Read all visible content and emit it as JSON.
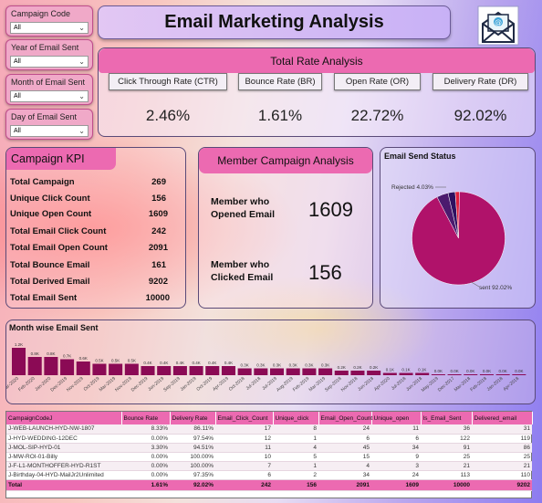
{
  "title": "Email Marketing Analysis",
  "slicers": [
    {
      "label": "Campaign Code",
      "value": "All"
    },
    {
      "label": "Year of Email Sent",
      "value": "All"
    },
    {
      "label": "Month of Email Sent",
      "value": "All"
    },
    {
      "label": "Day of Email Sent",
      "value": "All"
    }
  ],
  "rates": {
    "heading": "Total Rate Analysis",
    "items": [
      {
        "label": "Click Through Rate (CTR)",
        "value": "2.46%"
      },
      {
        "label": "Bounce Rate (BR)",
        "value": "1.61%"
      },
      {
        "label": "Open Rate (OR)",
        "value": "22.72%"
      },
      {
        "label": "Delivery Rate (DR)",
        "value": "92.02%"
      }
    ]
  },
  "kpi": {
    "heading": "Campaign KPI",
    "rows": [
      {
        "label": "Total Campaign",
        "value": "269"
      },
      {
        "label": "Unique Click Count",
        "value": "156"
      },
      {
        "label": "Unique Open Count",
        "value": "1609"
      },
      {
        "label": "Total Email Click Count",
        "value": "242"
      },
      {
        "label": "Total Email Open Count",
        "value": "2091"
      },
      {
        "label": "Total Bounce Email",
        "value": "161"
      },
      {
        "label": "Total Derived Email",
        "value": "9202"
      },
      {
        "label": "Total Email Sent",
        "value": "10000"
      }
    ]
  },
  "member": {
    "heading": "Member Campaign Analysis",
    "opened_label_1": "Member who",
    "opened_label_2": "Opened Email",
    "opened_value": "1609",
    "clicked_label_1": "Member who",
    "clicked_label_2": "Clicked Email",
    "clicked_value": "156"
  },
  "status": {
    "title": "Email Send Status",
    "rejected_label": "Rejected 4.03%",
    "sent_label": "sent 92.02%",
    "slices": [
      {
        "name": "sent",
        "pct": 92.02,
        "color": "#b0126a"
      },
      {
        "name": "Rejected",
        "pct": 4.03,
        "color": "#4b1a6e"
      },
      {
        "name": "other",
        "pct": 2.5,
        "color": "#2e1060"
      },
      {
        "name": "other2",
        "pct": 1.45,
        "color": "#e0203c"
      }
    ]
  },
  "chart_data": {
    "type": "bar",
    "title": "Month wise Email Sent",
    "categories": [
      "Mar-2020",
      "Feb-2020",
      "Jan-2020",
      "Dec-2019",
      "Nov-2019",
      "Oct-2019",
      "Mar-2019",
      "Nov-2019",
      "Dec-2019",
      "Jun-2019",
      "Sep-2019",
      "Jan-2019",
      "Oct-2019",
      "Apr-2019",
      "Oct-2018",
      "Jul-2018",
      "Jul-2019",
      "Aug-2019",
      "Feb-2019",
      "Mar-2019",
      "Sep-2018",
      "Nov-2018",
      "Jun-2018",
      "Apr-2020",
      "Jul-2018",
      "Jun-2018",
      "May-2019",
      "Dec-2017",
      "Mar-2018",
      "Feb-2018",
      "Jan-2018",
      "Apr-2018"
    ],
    "values": [
      1.2,
      0.8,
      0.8,
      0.7,
      0.6,
      0.5,
      0.5,
      0.5,
      0.4,
      0.4,
      0.4,
      0.4,
      0.4,
      0.4,
      0.3,
      0.3,
      0.3,
      0.3,
      0.3,
      0.3,
      0.2,
      0.2,
      0.2,
      0.1,
      0.1,
      0.1,
      0.0,
      0.0,
      0.0,
      0.0,
      0.0,
      0.0
    ],
    "labels": [
      "1.2K",
      "0.8K",
      "0.8K",
      "0.7K",
      "0.6K",
      "0.5K",
      "0.5K",
      "0.5K",
      "0.4K",
      "0.4K",
      "0.4K",
      "0.4K",
      "0.4K",
      "0.4K",
      "0.3K",
      "0.3K",
      "0.3K",
      "0.3K",
      "0.3K",
      "0.3K",
      "0.2K",
      "0.2K",
      "0.2K",
      "0.1K",
      "0.1K",
      "0.1K",
      "0.0K",
      "0.0K",
      "0.0K",
      "0.0K",
      "0.0K",
      "0.0K"
    ],
    "bar_color": "#8b0a55"
  },
  "table": {
    "columns": [
      "CampaignCodeJ",
      "Bounce Rate",
      "Delivery Rate",
      "Email_Click_Count",
      "Unique_click",
      "Email_Open_Count",
      "Unique_open",
      "Is_Email_Sent",
      "Delivered_email"
    ],
    "rows": [
      [
        "J-WEB-LAUNCH-HYD-NW-1807",
        "8.33%",
        "86.11%",
        "17",
        "8",
        "24",
        "11",
        "36",
        "31"
      ],
      [
        "J-HYD-WEDDING-12DEC",
        "0.00%",
        "97.54%",
        "12",
        "1",
        "6",
        "6",
        "122",
        "119"
      ],
      [
        "J-MOL-SIP-HYD-01",
        "3.30%",
        "94.51%",
        "11",
        "4",
        "45",
        "34",
        "91",
        "86"
      ],
      [
        "J-MW-ROI-01-Billy",
        "0.00%",
        "100.00%",
        "10",
        "5",
        "15",
        "9",
        "25",
        "25"
      ],
      [
        "J-F-L1-MONTHOFFER-HYD-R1ST",
        "0.00%",
        "100.00%",
        "7",
        "1",
        "4",
        "3",
        "21",
        "21"
      ],
      [
        "J-Birthday-04-HYD-MailJr2Unlimited",
        "0.00%",
        "97.35%",
        "6",
        "2",
        "34",
        "24",
        "113",
        "110"
      ]
    ],
    "total": [
      "Total",
      "1.61%",
      "92.02%",
      "242",
      "156",
      "2091",
      "1609",
      "10000",
      "9202"
    ]
  }
}
